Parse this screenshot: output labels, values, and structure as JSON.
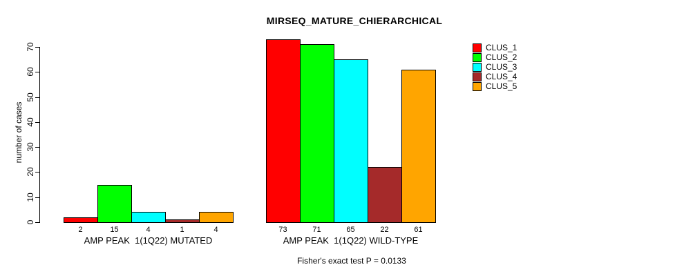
{
  "chart_data": {
    "type": "bar",
    "title": "MIRSEQ_MATURE_CHIERARCHICAL",
    "ylabel": "number of cases",
    "ylim": [
      0,
      70
    ],
    "yticks": [
      0,
      10,
      20,
      30,
      40,
      50,
      60,
      70
    ],
    "grid": false,
    "legend_position": "top-right-outside",
    "bar_border_color": "#000000",
    "background_color": "#FFFFFF",
    "text_color": "#000000",
    "groups": [
      {
        "label": "AMP PEAK  1(1Q22) MUTATED"
      },
      {
        "label": "AMP PEAK  1(1Q22) WILD-TYPE"
      }
    ],
    "series": [
      {
        "name": "CLUS_1",
        "color": "#FF0000",
        "values": [
          2,
          73
        ]
      },
      {
        "name": "CLUS_2",
        "color": "#00FF00",
        "values": [
          15,
          71
        ]
      },
      {
        "name": "CLUS_3",
        "color": "#00FFFF",
        "values": [
          4,
          65
        ]
      },
      {
        "name": "CLUS_4",
        "color": "#A52A2A",
        "values": [
          1,
          22
        ]
      },
      {
        "name": "CLUS_5",
        "color": "#FFA500",
        "values": [
          4,
          61
        ]
      }
    ],
    "value_labels_shown": true,
    "annotation": "Fisher's exact test P = 0.0133"
  }
}
